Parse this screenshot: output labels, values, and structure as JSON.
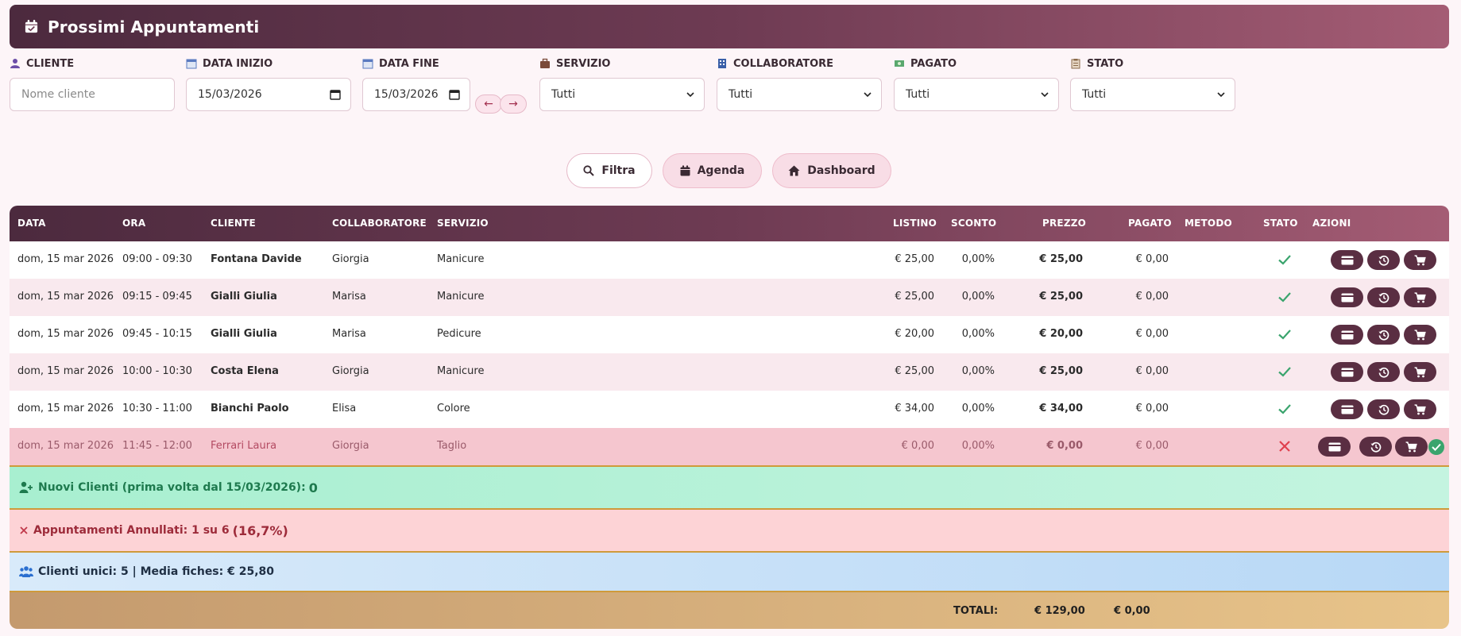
{
  "header": {
    "title": "Prossimi Appuntamenti"
  },
  "filters": {
    "cliente": {
      "label": "CLIENTE",
      "placeholder": "Nome cliente"
    },
    "data_inizio": {
      "label": "DATA INIZIO",
      "value": "15/03/2026"
    },
    "data_fine": {
      "label": "DATA FINE",
      "value": "15/03/2026"
    },
    "prev_arrow": "←",
    "next_arrow": "→",
    "servizio": {
      "label": "SERVIZIO",
      "value": "Tutti"
    },
    "collaboratore": {
      "label": "COLLABORATORE",
      "value": "Tutti"
    },
    "pagato": {
      "label": "PAGATO",
      "value": "Tutti"
    },
    "stato": {
      "label": "STATO",
      "value": "Tutti"
    }
  },
  "buttons": {
    "filtra": "Filtra",
    "agenda": "Agenda",
    "dashboard": "Dashboard"
  },
  "table": {
    "columns": [
      "DATA",
      "ORA",
      "CLIENTE",
      "COLLABORATORE",
      "SERVIZIO",
      "LISTINO",
      "SCONTO",
      "PREZZO",
      "PAGATO",
      "METODO",
      "STATO",
      "AZIONI"
    ],
    "rows": [
      {
        "data": "dom, 15 mar 2026",
        "ora": "09:00 - 09:30",
        "cliente": "Fontana Davide",
        "collaboratore": "Giorgia",
        "servizio": "Manicure",
        "listino": "€ 25,00",
        "sconto": "0,00%",
        "prezzo": "€ 25,00",
        "pagato": "€ 0,00",
        "metodo": "",
        "stato": "confirmed"
      },
      {
        "data": "dom, 15 mar 2026",
        "ora": "09:15 - 09:45",
        "cliente": "Gialli Giulia",
        "collaboratore": "Marisa",
        "servizio": "Manicure",
        "listino": "€ 25,00",
        "sconto": "0,00%",
        "prezzo": "€ 25,00",
        "pagato": "€ 0,00",
        "metodo": "",
        "stato": "confirmed"
      },
      {
        "data": "dom, 15 mar 2026",
        "ora": "09:45 - 10:15",
        "cliente": "Gialli Giulia",
        "collaboratore": "Marisa",
        "servizio": "Pedicure",
        "listino": "€ 20,00",
        "sconto": "0,00%",
        "prezzo": "€ 20,00",
        "pagato": "€ 0,00",
        "metodo": "",
        "stato": "confirmed"
      },
      {
        "data": "dom, 15 mar 2026",
        "ora": "10:00 - 10:30",
        "cliente": "Costa Elena",
        "collaboratore": "Giorgia",
        "servizio": "Manicure",
        "listino": "€ 25,00",
        "sconto": "0,00%",
        "prezzo": "€ 25,00",
        "pagato": "€ 0,00",
        "metodo": "",
        "stato": "confirmed"
      },
      {
        "data": "dom, 15 mar 2026",
        "ora": "10:30 - 11:00",
        "cliente": "Bianchi Paolo",
        "collaboratore": "Elisa",
        "servizio": "Colore",
        "listino": "€ 34,00",
        "sconto": "0,00%",
        "prezzo": "€ 34,00",
        "pagato": "€ 0,00",
        "metodo": "",
        "stato": "confirmed"
      },
      {
        "data": "dom, 15 mar 2026",
        "ora": "11:45 - 12:00",
        "cliente": "Ferrari Laura",
        "collaboratore": "Giorgia",
        "servizio": "Taglio",
        "listino": "€ 0,00",
        "sconto": "0,00%",
        "prezzo": "€ 0,00",
        "pagato": "€ 0,00",
        "metodo": "",
        "stato": "cancelled"
      }
    ]
  },
  "summary": {
    "nuovi_clienti_label": "Nuovi Clienti (prima volta dal 15/03/2026):",
    "nuovi_clienti_value": "0",
    "annullati_label": "Appuntamenti Annullati: 1 su 6",
    "annullati_pct": "(16,7%)",
    "clienti_unici": "Clienti unici: 5 | Media fiches: € 25,80",
    "totali_label": "TOTALI:",
    "totale_prezzo": "€ 129,00",
    "totale_pagato": "€ 0,00"
  },
  "colors": {
    "primary_dark": "#4c2a3e",
    "primary_light": "#a45c74",
    "action_button": "#5a2e42",
    "ok_green": "#3aa46d",
    "cancel_red": "#e0404e"
  }
}
